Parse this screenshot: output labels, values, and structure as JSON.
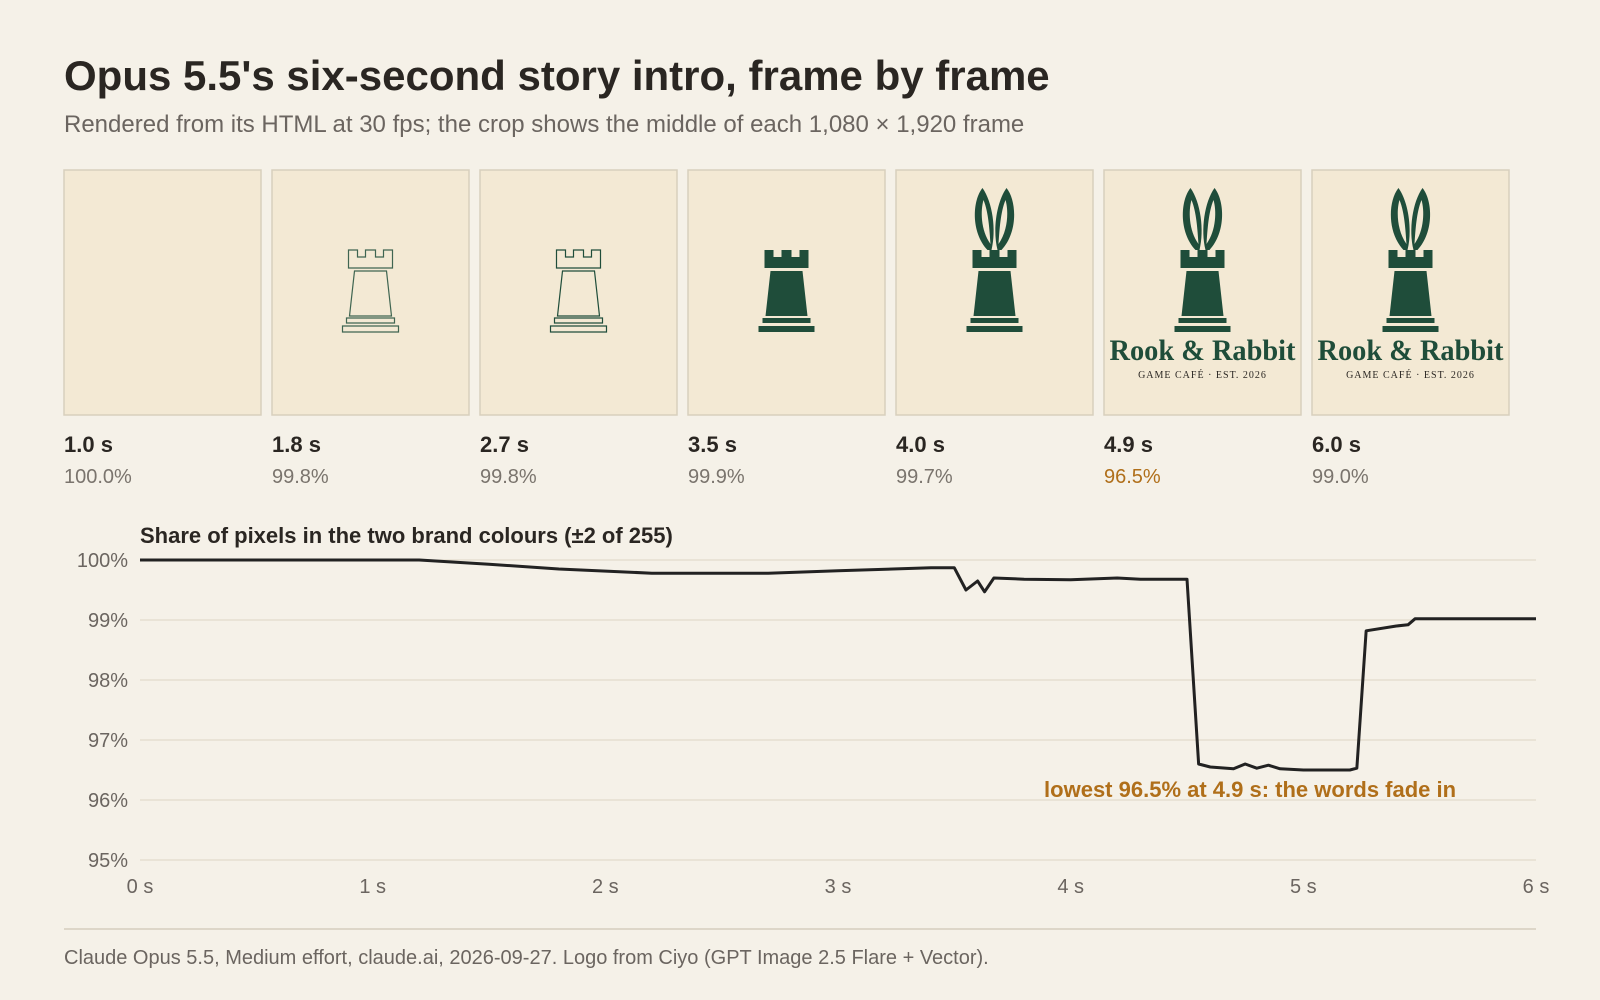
{
  "title": "Opus 5.5's six-second story intro, frame by frame",
  "subtitle": "Rendered from its HTML at 30 fps; the crop shows the middle of each 1,080 × 1,920 frame",
  "logo": {
    "name": "Rook & Rabbit",
    "tagline": "GAME CAFÉ · EST. 2026",
    "color": "#1f4d3a"
  },
  "frames": [
    {
      "time": "1.0 s",
      "share": "100.0%"
    },
    {
      "time": "1.8 s",
      "share": "99.8%"
    },
    {
      "time": "2.7 s",
      "share": "99.8%"
    },
    {
      "time": "3.5 s",
      "share": "99.9%"
    },
    {
      "time": "4.0 s",
      "share": "99.7%"
    },
    {
      "time": "4.9 s",
      "share": "96.5%",
      "color": "#b06f1a"
    },
    {
      "time": "6.0 s",
      "share": "99.0%"
    }
  ],
  "chart_data": {
    "type": "line",
    "title": "Share of pixels in the two brand colours (±2 of 255)",
    "x": [
      0,
      1.2,
      1.5,
      1.8,
      2.2,
      2.7,
      3.0,
      3.4,
      3.5,
      3.55,
      3.6,
      3.63,
      3.67,
      3.8,
      4.0,
      4.2,
      4.3,
      4.5,
      4.55,
      4.6,
      4.7,
      4.75,
      4.8,
      4.85,
      4.9,
      5.0,
      5.2,
      5.23,
      5.27,
      5.4,
      5.45,
      5.48,
      6.0
    ],
    "values": [
      100,
      100,
      99.93,
      99.85,
      99.78,
      99.78,
      99.82,
      99.87,
      99.87,
      99.5,
      99.65,
      99.47,
      99.7,
      99.68,
      99.67,
      99.7,
      99.68,
      99.68,
      96.6,
      96.55,
      96.52,
      96.6,
      96.53,
      96.58,
      96.52,
      96.5,
      96.5,
      96.53,
      98.82,
      98.9,
      98.92,
      99.02,
      99.02
    ],
    "color": "#222222",
    "xlim": [
      0,
      6
    ],
    "xticks": [
      {
        "value": 0,
        "label": "0 s"
      },
      {
        "value": 1,
        "label": "1 s"
      },
      {
        "value": 2,
        "label": "2 s"
      },
      {
        "value": 3,
        "label": "3 s"
      },
      {
        "value": 4,
        "label": "4 s"
      },
      {
        "value": 5,
        "label": "5 s"
      },
      {
        "value": 6,
        "label": "6 s"
      }
    ],
    "ylim": [
      95,
      100
    ],
    "yticks": [
      {
        "value": 95,
        "label": "95%"
      },
      {
        "value": 96,
        "label": "96%"
      },
      {
        "value": 97,
        "label": "97%"
      },
      {
        "value": 98,
        "label": "98%"
      },
      {
        "value": 99,
        "label": "99%"
      },
      {
        "value": 100,
        "label": "100%"
      }
    ],
    "grid": true,
    "annotation": {
      "text": "lowest 96.5% at 4.9 s: the words fade in",
      "x": 4.9,
      "y": 96.5,
      "color": "#b06f1a"
    }
  },
  "footer": "Claude Opus 5.5, Medium effort, claude.ai, 2026-09-27. Logo from Ciyo (GPT Image 2.5 Flare + Vector)."
}
